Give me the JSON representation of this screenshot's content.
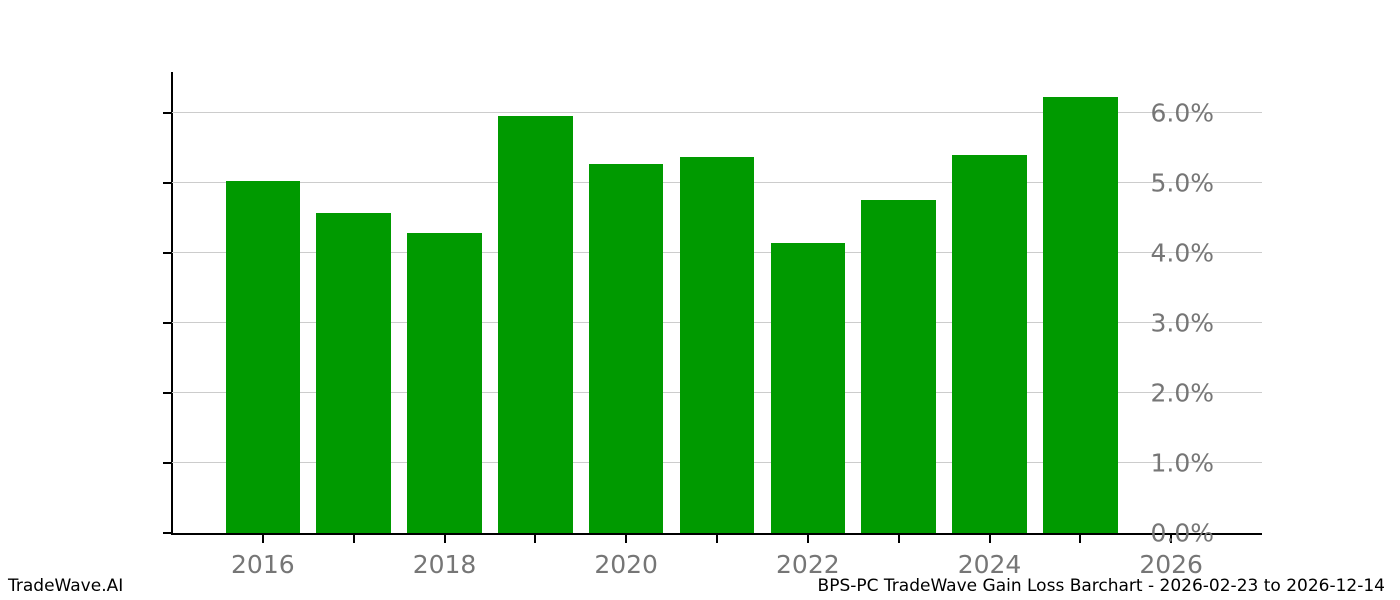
{
  "chart_data": {
    "type": "bar",
    "title": "",
    "xlabel": "",
    "ylabel": "",
    "categories": [
      2016,
      2017,
      2018,
      2019,
      2020,
      2021,
      2022,
      2023,
      2024,
      2025
    ],
    "values": [
      5.03,
      4.57,
      4.28,
      5.95,
      5.27,
      5.37,
      4.14,
      4.75,
      5.4,
      6.23
    ],
    "unit": "%",
    "bar_color": "#009a00",
    "bar_width_years": 0.82,
    "xlim": [
      2015.0,
      2027.0
    ],
    "ylim": [
      0,
      6.58
    ],
    "yticks": [
      {
        "value": 0,
        "label": "0.0%"
      },
      {
        "value": 1,
        "label": "1.0%"
      },
      {
        "value": 2,
        "label": "2.0%"
      },
      {
        "value": 3,
        "label": "3.0%"
      },
      {
        "value": 4,
        "label": "4.0%"
      },
      {
        "value": 5,
        "label": "5.0%"
      },
      {
        "value": 6,
        "label": "6.0%"
      }
    ],
    "xticks": [
      {
        "year": 2016,
        "label": "2016"
      },
      {
        "year": 2017,
        "label": ""
      },
      {
        "year": 2018,
        "label": "2018"
      },
      {
        "year": 2019,
        "label": ""
      },
      {
        "year": 2020,
        "label": "2020"
      },
      {
        "year": 2021,
        "label": ""
      },
      {
        "year": 2022,
        "label": "2022"
      },
      {
        "year": 2023,
        "label": ""
      },
      {
        "year": 2024,
        "label": "2024"
      },
      {
        "year": 2025,
        "label": ""
      },
      {
        "year": 2026,
        "label": "2026"
      }
    ],
    "grid": "horizontal",
    "legend": "none",
    "gridline_color": "#cccccc",
    "tick_label_color": "#767676"
  },
  "footer": {
    "brand": "TradeWave.AI",
    "title": "BPS-PC TradeWave Gain Loss Barchart - 2026-02-23 to 2026-12-14"
  }
}
